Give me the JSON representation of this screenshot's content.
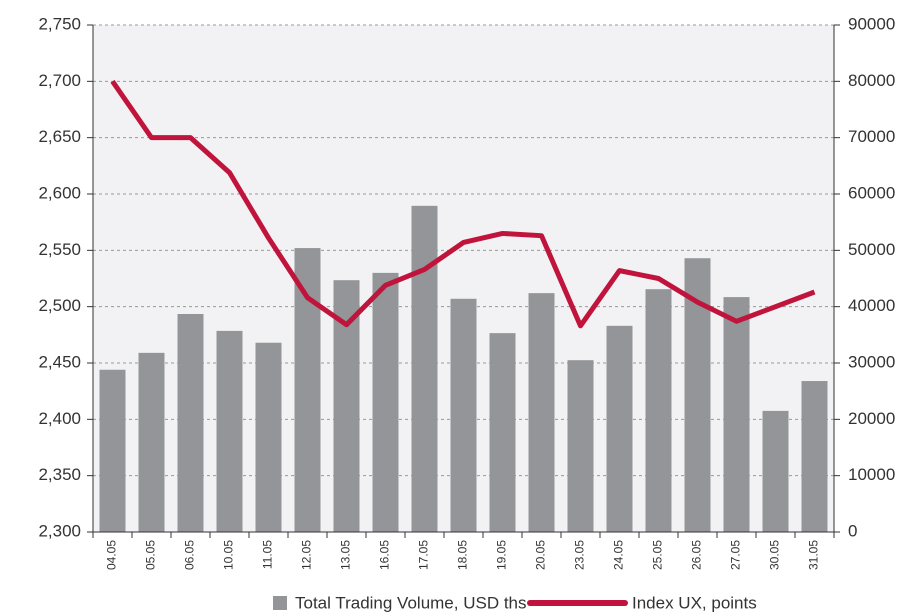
{
  "chart_data": {
    "type": "bar-line",
    "categories": [
      "04.05",
      "05.05",
      "06.05",
      "10.05",
      "11.05",
      "12.05",
      "13.05",
      "16.05",
      "17.05",
      "18.05",
      "19.05",
      "20.05",
      "23.05",
      "24.05",
      "25.05",
      "26.05",
      "27.05",
      "30.05",
      "31.05"
    ],
    "series": [
      {
        "name": "Total Trading Volume, USD ths",
        "type": "bar",
        "axis": "y2",
        "color": "#939598",
        "values": [
          28800,
          31800,
          38700,
          35700,
          33600,
          50400,
          44700,
          46000,
          57900,
          41400,
          35300,
          42400,
          30500,
          36600,
          43100,
          48600,
          41700,
          21500,
          26800
        ]
      },
      {
        "name": "Index UX, points",
        "type": "line",
        "axis": "y",
        "color": "#c0143c",
        "values": [
          2700,
          2650,
          2650,
          2619,
          2561,
          2508,
          2484,
          2519,
          2533,
          2557,
          2565,
          2563,
          2483,
          2532,
          2525,
          2504,
          2487,
          2500,
          2513
        ]
      }
    ],
    "ylim": [
      2300,
      2750
    ],
    "yticks": [
      {
        "value": 2300,
        "label": "2,300"
      },
      {
        "value": 2350,
        "label": "2,350"
      },
      {
        "value": 2400,
        "label": "2,400"
      },
      {
        "value": 2450,
        "label": "2,450"
      },
      {
        "value": 2500,
        "label": "2,500"
      },
      {
        "value": 2550,
        "label": "2,550"
      },
      {
        "value": 2600,
        "label": "2,600"
      },
      {
        "value": 2650,
        "label": "2,650"
      },
      {
        "value": 2700,
        "label": "2,700"
      },
      {
        "value": 2750,
        "label": "2,750"
      }
    ],
    "y2lim": [
      0,
      90000
    ],
    "y2ticks": [
      0,
      10000,
      20000,
      30000,
      40000,
      50000,
      60000,
      70000,
      80000,
      90000
    ],
    "grid": true
  }
}
